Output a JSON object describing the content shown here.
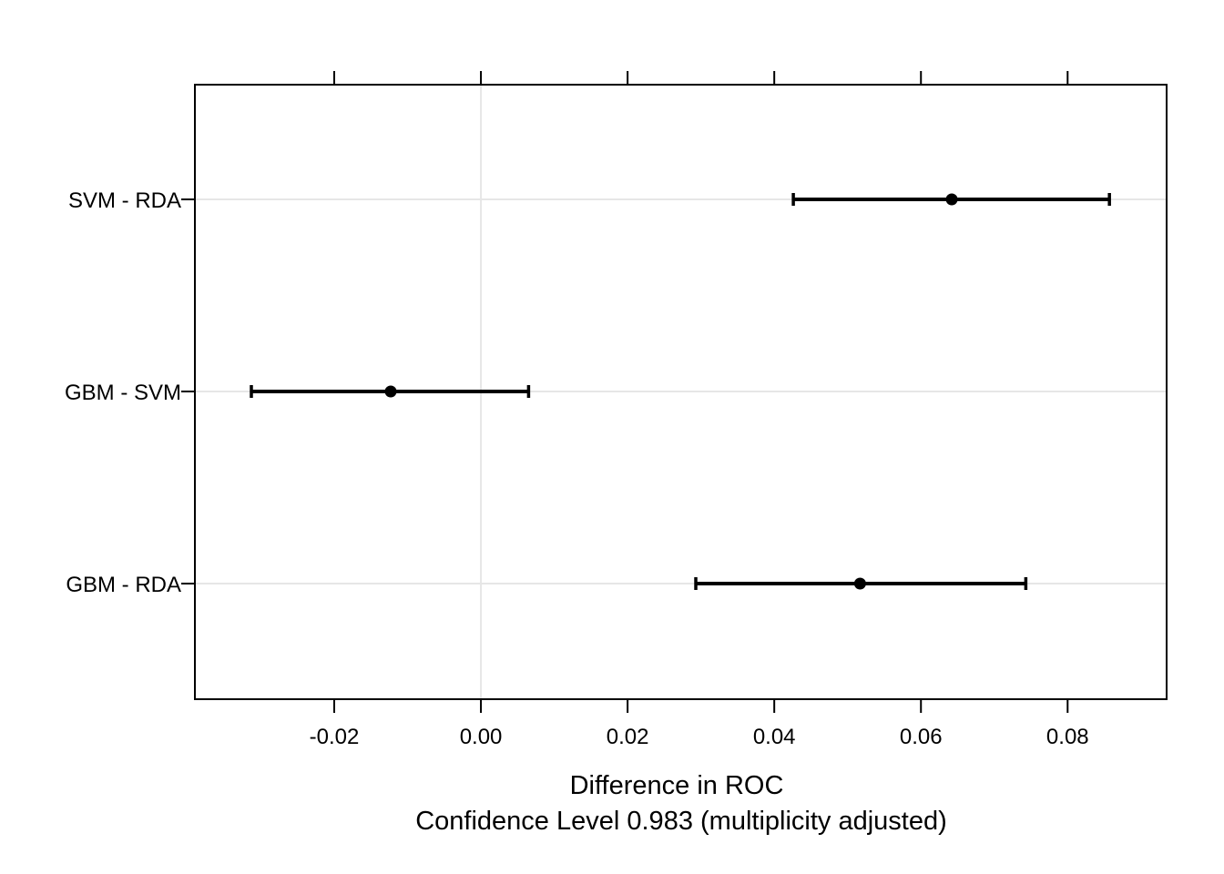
{
  "chart_data": {
    "type": "dotplot-interval",
    "title": "",
    "xlabel": "Difference in ROC",
    "subtitle": "Confidence Level 0.983  (multiplicity adjusted)",
    "ylabel": "",
    "xlim": [
      -0.039,
      0.0935
    ],
    "x_ticks": [
      -0.02,
      0.0,
      0.02,
      0.04,
      0.06,
      0.08
    ],
    "x_tick_labels": [
      "-0.02",
      "0.00",
      "0.02",
      "0.04",
      "0.06",
      "0.08"
    ],
    "categories": [
      "SVM - RDA",
      "GBM - SVM",
      "GBM - RDA"
    ],
    "estimates": [
      0.0642,
      -0.0123,
      0.0517
    ],
    "lower": [
      0.0426,
      -0.0313,
      0.0293
    ],
    "upper": [
      0.0857,
      0.0065,
      0.0743
    ],
    "reference_line": 0.0,
    "grid": true,
    "legend": "none",
    "colors": {
      "points": "#000000",
      "grid": "#e6e6e6",
      "frame": "#000000"
    }
  }
}
